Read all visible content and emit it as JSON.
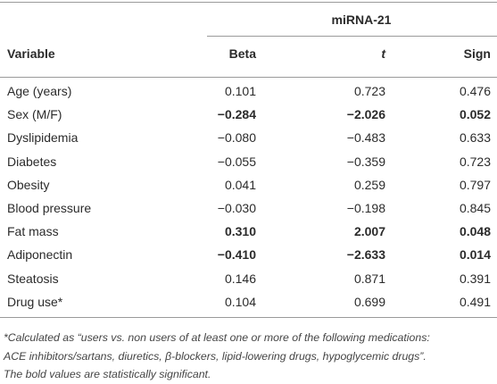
{
  "table": {
    "group_header": "miRNA-21",
    "columns": [
      "Variable",
      "Beta",
      "t",
      "Sign"
    ],
    "rows": [
      {
        "cells": [
          "Age (years)",
          "0.101",
          "0.723",
          "0.476"
        ],
        "bold": false
      },
      {
        "cells": [
          "Sex (M/F)",
          "−0.284",
          "−2.026",
          "0.052"
        ],
        "bold": true
      },
      {
        "cells": [
          "Dyslipidemia",
          "−0.080",
          "−0.483",
          "0.633"
        ],
        "bold": false
      },
      {
        "cells": [
          "Diabetes",
          "−0.055",
          "−0.359",
          "0.723"
        ],
        "bold": false
      },
      {
        "cells": [
          "Obesity",
          "0.041",
          "0.259",
          "0.797"
        ],
        "bold": false
      },
      {
        "cells": [
          "Blood pressure",
          "−0.030",
          "−0.198",
          "0.845"
        ],
        "bold": false
      },
      {
        "cells": [
          "Fat mass",
          "0.310",
          "2.007",
          "0.048"
        ],
        "bold": true
      },
      {
        "cells": [
          "Adiponectin",
          "−0.410",
          "−2.633",
          "0.014"
        ],
        "bold": true
      },
      {
        "cells": [
          "Steatosis",
          "0.146",
          "0.871",
          "0.391"
        ],
        "bold": false
      },
      {
        "cells": [
          "Drug use*",
          "0.104",
          "0.699",
          "0.491"
        ],
        "bold": false
      }
    ]
  },
  "footnote": [
    "*Calculated as “users vs. non users of at least one or more of the following medications:",
    "ACE inhibitors/sartans, diuretics, β-blockers, lipid-lowering drugs, hypoglycemic drugs”.",
    "The bold values are statistically significant."
  ]
}
